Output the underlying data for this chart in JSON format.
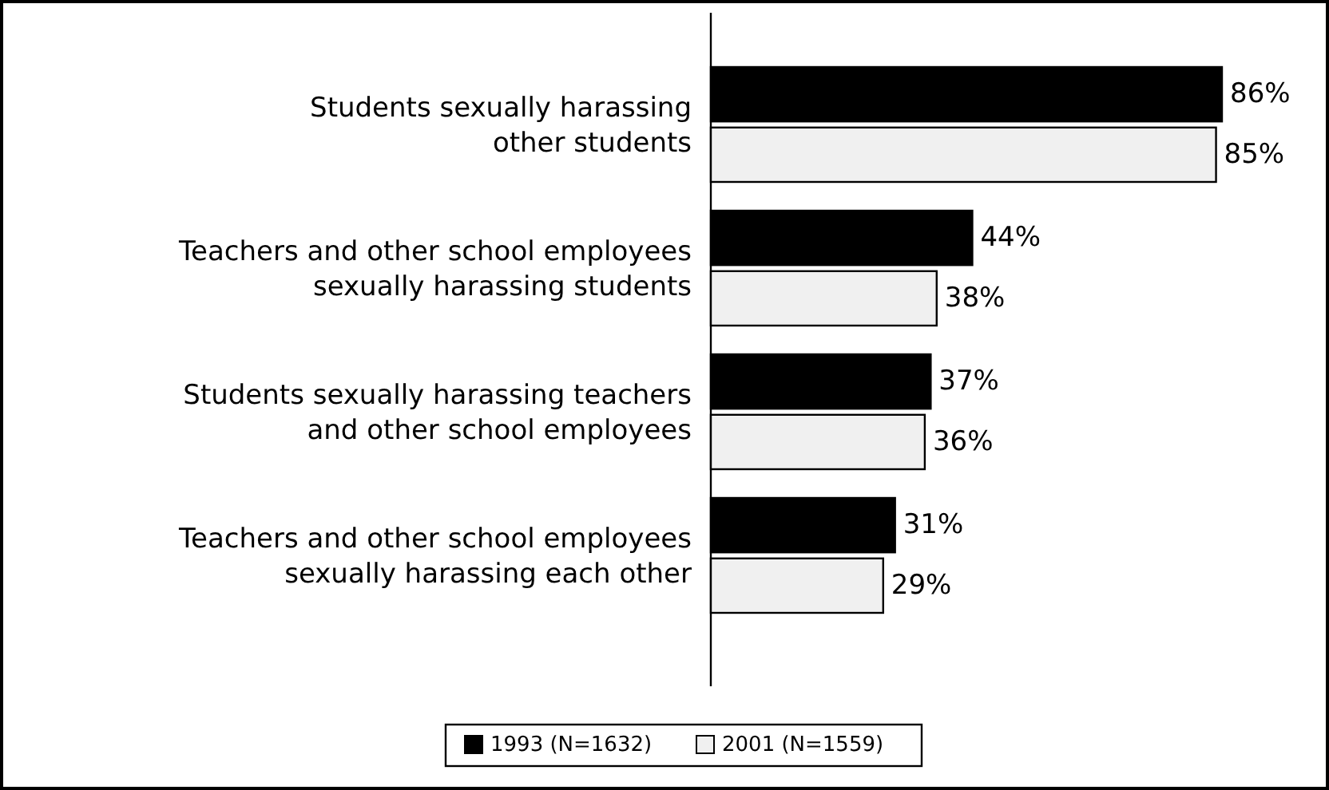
{
  "chart_data": {
    "type": "bar",
    "orientation": "horizontal",
    "categories": [
      "Students sexually harassing other students",
      "Teachers and other school employees sexually harassing students",
      "Students sexually harassing teachers and other school employees",
      "Teachers and other school employees sexually harassing each other"
    ],
    "series": [
      {
        "name": "1993 (N=1632)",
        "color": "#000000",
        "values": [
          86,
          44,
          37,
          31
        ],
        "value_labels": [
          "86%",
          "44%",
          "37%",
          "31%"
        ]
      },
      {
        "name": "2001 (N=1559)",
        "color": "#f0f0f0",
        "values": [
          85,
          38,
          36,
          29
        ],
        "value_labels": [
          "85%",
          "38%",
          "36%",
          "29%"
        ]
      }
    ],
    "legend": "bottom"
  }
}
